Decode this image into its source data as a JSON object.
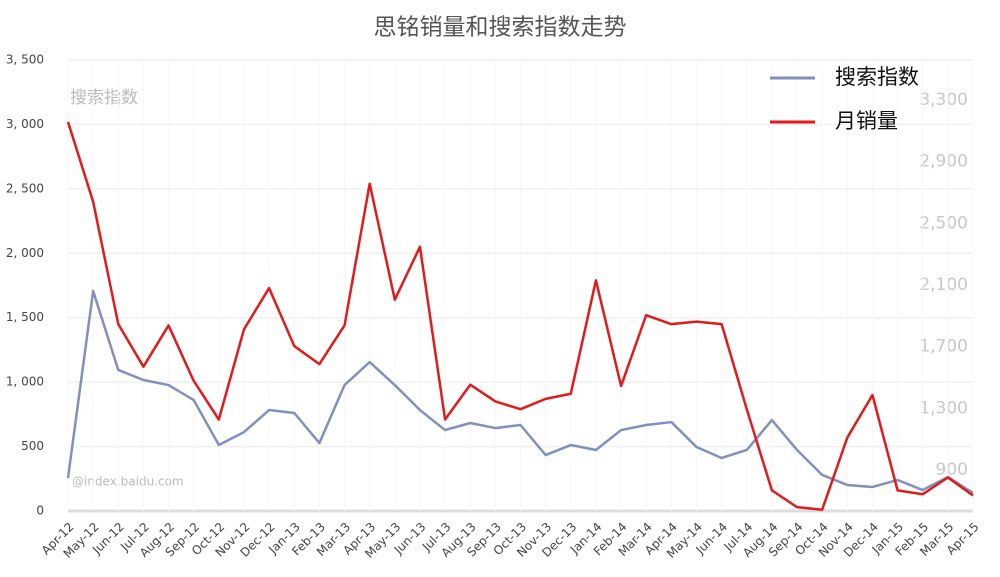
{
  "chart_data": {
    "type": "line",
    "title": "思铭销量和搜索指数走势",
    "categories": [
      "Apr-12",
      "May-12",
      "Jun-12",
      "Jul-12",
      "Aug-12",
      "Sep-12",
      "Oct-12",
      "Nov-12",
      "Dec-12",
      "Jan-13",
      "Feb-13",
      "Mar-13",
      "Apr-13",
      "May-13",
      "Jun-13",
      "Jul-13",
      "Aug-13",
      "Sep-13",
      "Oct-13",
      "Nov-13",
      "Dec-13",
      "Jan-14",
      "Feb-14",
      "Mar-14",
      "Apr-14",
      "May-14",
      "Jun-14",
      "Jul-14",
      "Aug-14",
      "Sep-14",
      "Oct-14",
      "Nov-14",
      "Dec-14",
      "Jan-15",
      "Feb-15",
      "Mar-15",
      "Apr-15"
    ],
    "series": [
      {
        "name": "搜索指数",
        "color": "#8090bf",
        "axis": "y2",
        "values": [
          848,
          2061,
          1549,
          1484,
          1451,
          1354,
          1062,
          1146,
          1289,
          1270,
          1075,
          1451,
          1600,
          1451,
          1289,
          1159,
          1205,
          1172,
          1192,
          997,
          1062,
          1030,
          1159,
          1192,
          1211,
          1049,
          978,
          1030,
          1224,
          1030,
          868,
          803,
          790,
          835,
          770,
          855,
          751
        ]
      },
      {
        "name": "月销量",
        "color": "#e31a1c",
        "values": [
          3020,
          2400,
          1450,
          1120,
          1440,
          1010,
          710,
          1410,
          1730,
          1280,
          1140,
          1440,
          2540,
          1640,
          2050,
          710,
          980,
          850,
          790,
          870,
          910,
          1790,
          970,
          1520,
          1450,
          1470,
          1450,
          790,
          160,
          30,
          10,
          570,
          900,
          160,
          130,
          260,
          120
        ]
      }
    ],
    "ylim": [
      0,
      3500
    ],
    "yticks": [
      0,
      500,
      {
        "value": 1000,
        "label": "1, 000"
      },
      {
        "value": 1500,
        "label": "1, 500"
      },
      {
        "value": 2000,
        "label": "2, 000"
      },
      {
        "value": 2500,
        "label": "2, 500"
      },
      {
        "value": 3000,
        "label": "3, 000"
      },
      {
        "value": 3500,
        "label": "3, 500"
      }
    ],
    "y2lim": [
      634,
      3560
    ],
    "y2ticks": [
      900,
      {
        "value": 1300,
        "label": "1,300"
      },
      {
        "value": 1700,
        "label": "1,700"
      },
      {
        "value": 2100,
        "label": "2,100"
      },
      {
        "value": 2500,
        "label": "2,500"
      },
      {
        "value": 2900,
        "label": "2,900"
      },
      {
        "value": 3300,
        "label": "3,300"
      }
    ],
    "grid": true,
    "legend": "top-right",
    "annotations": [
      "搜索指数",
      "@index.baidu.com"
    ]
  }
}
